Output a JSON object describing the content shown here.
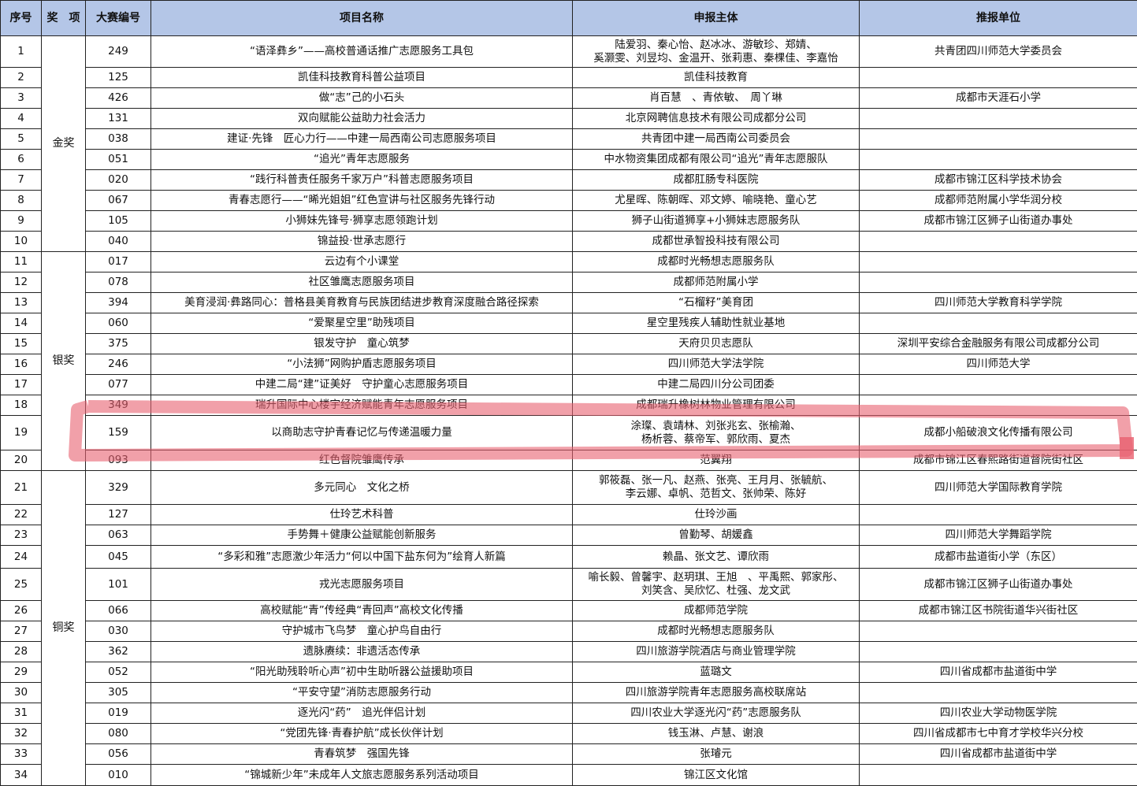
{
  "headers": {
    "no": "序号",
    "award": "奖　项",
    "id": "大赛编号",
    "name": "项目名称",
    "applicant": "申报主体",
    "recommender": "推报单位"
  },
  "awards": [
    {
      "label": "金奖",
      "rows": 10
    },
    {
      "label": "银奖",
      "rows": 10
    },
    {
      "label": "铜奖",
      "rows": 14
    }
  ],
  "highlight_color": "#e8606f",
  "header_color": "#b4c6e7",
  "rows": [
    {
      "no": "1",
      "id": "249",
      "name": "“语泽彝乡”——高校普通话推广志愿服务工具包",
      "applicant": "陆爱羽、秦心怡、赵冰冰、游敏珍、郑婧、\n奚灏雯、刘昱均、金温开、张莉惠、秦棵佳、李嘉怡",
      "recommender": "共青团四川师范大学委员会"
    },
    {
      "no": "2",
      "id": "125",
      "name": "凯佳科技教育科普公益项目",
      "applicant": "凯佳科技教育",
      "recommender": ""
    },
    {
      "no": "3",
      "id": "426",
      "name": "做“志”己的小石头",
      "applicant": "肖百慧　、青依敏、　周丫琳",
      "recommender": "成都市天涯石小学"
    },
    {
      "no": "4",
      "id": "131",
      "name": "双向赋能公益助力社会活力",
      "applicant": "北京网聘信息技术有限公司成都分公司",
      "recommender": ""
    },
    {
      "no": "5",
      "id": "038",
      "name": "建证·先锋　匠心力行——中建一局西南公司志愿服务项目",
      "applicant": "共青团中建一局西南公司委员会",
      "recommender": ""
    },
    {
      "no": "6",
      "id": "051",
      "name": "“追光”青年志愿服务",
      "applicant": "中水物资集团成都有限公司“追光”青年志愿服队",
      "recommender": ""
    },
    {
      "no": "7",
      "id": "020",
      "name": "“践行科普责任服务千家万户”科普志愿服务项目",
      "applicant": "成都肛肠专科医院",
      "recommender": "成都市锦江区科学技术协会"
    },
    {
      "no": "8",
      "id": "067",
      "name": "青春志愿行——“晞光姐姐”红色宣讲与社区服务先锋行动",
      "applicant": "尤星晖、陈朝晖、邓文婷、喻晓艳、童心艺",
      "recommender": "成都师范附属小学华润分校"
    },
    {
      "no": "9",
      "id": "105",
      "name": "小狮妹先锋号·狮享志愿领跑计划",
      "applicant": "狮子山街道狮享+小狮妹志愿服务队",
      "recommender": "成都市锦江区狮子山街道办事处"
    },
    {
      "no": "10",
      "id": "040",
      "name": "锦益投·世承志愿行",
      "applicant": "成都世承智投科技有限公司",
      "recommender": ""
    },
    {
      "no": "11",
      "id": "017",
      "name": "云边有个小课堂",
      "applicant": "成都时光畅想志愿服务队",
      "recommender": ""
    },
    {
      "no": "12",
      "id": "078",
      "name": "社区雏鹰志愿服务项目",
      "applicant": "成都师范附属小学",
      "recommender": ""
    },
    {
      "no": "13",
      "id": "394",
      "name": "美育浸润·彝路同心：普格县美育教育与民族团结进步教育深度融合路径探索",
      "applicant": "“石榴籽”美育团",
      "recommender": "四川师范大学教育科学学院"
    },
    {
      "no": "14",
      "id": "060",
      "name": "“爱聚星空里”助残项目",
      "applicant": "星空里残疾人辅助性就业基地",
      "recommender": ""
    },
    {
      "no": "15",
      "id": "375",
      "name": "银发守护　童心筑梦",
      "applicant": "天府贝贝志愿队",
      "recommender": "深圳平安综合金融服务有限公司成都分公司"
    },
    {
      "no": "16",
      "id": "246",
      "name": "“小法狮”网购护盾志愿服务项目",
      "applicant": "四川师范大学法学院",
      "recommender": "四川师范大学"
    },
    {
      "no": "17",
      "id": "077",
      "name": "中建二局“建”证美好　守护童心志愿服务项目",
      "applicant": "中建二局四川分公司团委",
      "recommender": ""
    },
    {
      "no": "18",
      "id": "349",
      "name": "瑞升国际中心楼宇经济赋能青年志愿服务项目",
      "applicant": "成都瑞升橡树林物业管理有限公司",
      "recommender": ""
    },
    {
      "no": "19",
      "id": "159",
      "name": "以商助志守护青春记忆与传递温暖力量",
      "applicant": "涂璨、袁靖林、刘张兆玄、张榆瀚、\n杨析蓉、蔡帝军、郭欣雨、夏杰",
      "recommender": "成都小船破浪文化传播有限公司"
    },
    {
      "no": "20",
      "id": "093",
      "name": "红色督院雏鹰传承",
      "applicant": "范翼翔",
      "recommender": "成都市锦江区春熙路街道督院街社区"
    },
    {
      "no": "21",
      "id": "329",
      "name": "多元同心　文化之桥",
      "applicant": "郭筱磊、张一凡、赵燕、张亮、王月月、张毓航、\n李云娜、卓帆、范哲文、张帅荣、陈好",
      "recommender": "四川师范大学国际教育学院"
    },
    {
      "no": "22",
      "id": "127",
      "name": "仕玲艺术科普",
      "applicant": "仕玲沙画",
      "recommender": ""
    },
    {
      "no": "23",
      "id": "063",
      "name": "手势舞＋健康公益赋能创新服务",
      "applicant": "曾勤琴、胡媛鑫",
      "recommender": "四川师范大学舞蹈学院"
    },
    {
      "no": "24",
      "id": "045",
      "name": "“多彩和雅”志愿激少年活力“何以中国下盐东何为”绘育人新篇",
      "applicant": "赖晶、张文艺、谭欣雨",
      "recommender": "成都市盐道街小学（东区）"
    },
    {
      "no": "25",
      "id": "101",
      "name": "戎光志愿服务项目",
      "applicant": "喻长毅、曾馨宇、赵玥琪、王旭　、平禹熙、郭家彤、\n刘笑含、吴欣忆、杜强、龙文武",
      "recommender": "成都市锦江区狮子山街道办事处"
    },
    {
      "no": "26",
      "id": "066",
      "name": "高校赋能“青”传经典“青回声”高校文化传播",
      "applicant": "成都师范学院",
      "recommender": "成都市锦江区书院街道华兴街社区"
    },
    {
      "no": "27",
      "id": "030",
      "name": "守护城市飞鸟梦　童心护鸟自由行",
      "applicant": "成都时光畅想志愿服务队",
      "recommender": ""
    },
    {
      "no": "28",
      "id": "362",
      "name": "遗脉赓续：非遗活态传承",
      "applicant": "四川旅游学院酒店与商业管理学院",
      "recommender": ""
    },
    {
      "no": "29",
      "id": "052",
      "name": "“阳光助残聆听心声”初中生助听器公益援助项目",
      "applicant": "蓝璐文",
      "recommender": "四川省成都市盐道街中学"
    },
    {
      "no": "30",
      "id": "305",
      "name": "“平安守望”消防志愿服务行动",
      "applicant": "四川旅游学院青年志愿服务高校联席站",
      "recommender": ""
    },
    {
      "no": "31",
      "id": "019",
      "name": "逐光闪“药”　追光伴侣计划",
      "applicant": "四川农业大学逐光闪“药”志愿服务队",
      "recommender": "四川农业大学动物医学院"
    },
    {
      "no": "32",
      "id": "080",
      "name": "“党团先锋·青春护航”成长伙伴计划",
      "applicant": "钱玉淋、卢慧、谢浪",
      "recommender": "四川省成都市七中育才学校华兴分校"
    },
    {
      "no": "33",
      "id": "056",
      "name": "青春筑梦　强国先锋",
      "applicant": "张璿元",
      "recommender": "四川省成都市盐道街中学"
    },
    {
      "no": "34",
      "id": "010",
      "name": "“锦城新少年”未成年人文旅志愿服务系列活动项目",
      "applicant": "锦江区文化馆",
      "recommender": ""
    }
  ]
}
